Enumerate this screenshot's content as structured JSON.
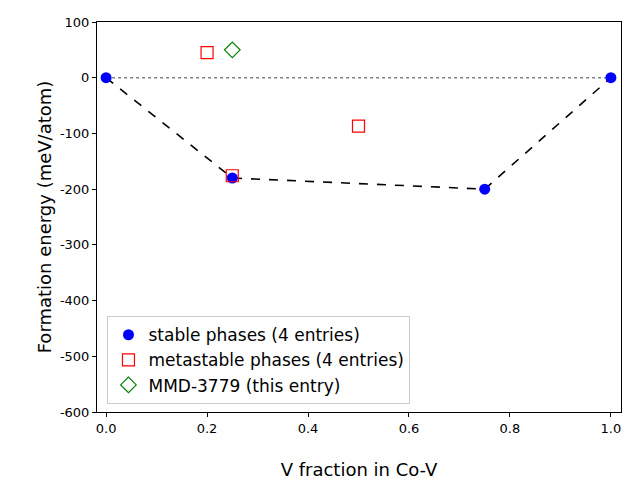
{
  "chart_data": {
    "type": "scatter",
    "x_label": "V fraction in Co-V",
    "y_label": "Formation energy (meV/atom)",
    "xlim": [
      -0.018,
      1.02
    ],
    "xticks": [
      {
        "value": 0,
        "label": "0.0"
      },
      {
        "value": 0.2,
        "label": "0.2"
      },
      {
        "value": 0.4,
        "label": "0.4"
      },
      {
        "value": 0.6,
        "label": "0.6"
      },
      {
        "value": 0.8,
        "label": "0.8"
      },
      {
        "value": 1,
        "label": "1.0"
      }
    ],
    "ylim": [
      -600,
      100
    ],
    "yticks": [
      -600,
      -500,
      -400,
      -300,
      -200,
      -100,
      0,
      100
    ],
    "grid": false,
    "legend": "lower left",
    "series": [
      {
        "type": "line",
        "color": "gray",
        "line_style": "dotted",
        "x": [
          0,
          1
        ],
        "values": [
          0,
          0
        ]
      },
      {
        "type": "line",
        "color": "black",
        "line_style": "dashed",
        "x": [
          0,
          0.25,
          0.75,
          1
        ],
        "values": [
          0,
          -180,
          -200,
          0
        ]
      },
      {
        "name": "stable phases (4 entries)",
        "type": "scatter",
        "color": "blue",
        "marker": "circle",
        "x": [
          0,
          0.25,
          0.75,
          1
        ],
        "values": [
          0,
          -180,
          -200,
          0
        ]
      },
      {
        "name": "metastable phases (4 entries)",
        "type": "scatter",
        "color": "red",
        "marker": "square-open",
        "x": [
          0.2,
          0.25,
          0.5
        ],
        "values": [
          45,
          -176,
          -87
        ]
      },
      {
        "name": "MMD-3779 (this entry)",
        "type": "scatter",
        "color": "green",
        "marker": "diamond-open",
        "x": [
          0.25
        ],
        "values": [
          50
        ]
      }
    ]
  }
}
